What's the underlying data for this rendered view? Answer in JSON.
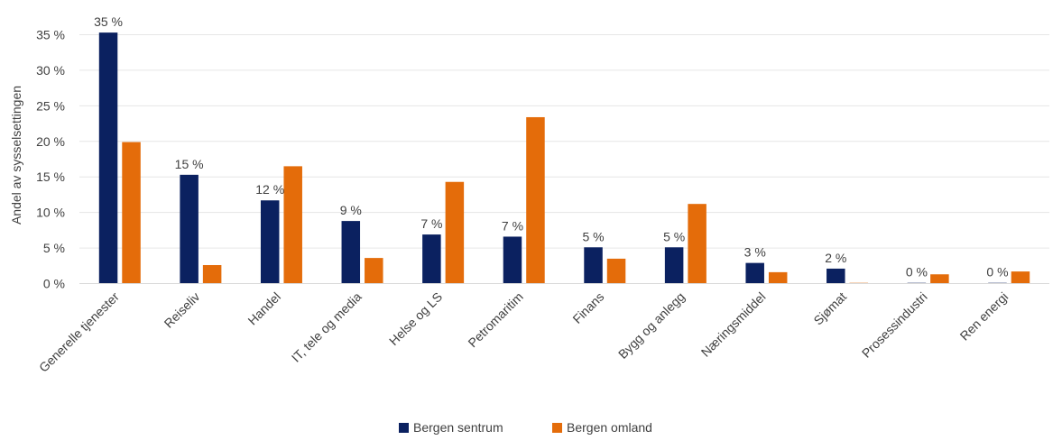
{
  "chart_data": {
    "type": "bar",
    "ylabel": "Andel av sysselsettingen",
    "xlabel": "",
    "ylim": [
      0,
      35
    ],
    "y_ticks": [
      "0 %",
      "5 %",
      "10 %",
      "15 %",
      "20 %",
      "25 %",
      "30 %",
      "35 %"
    ],
    "grid": true,
    "legend_position": "bottom",
    "categories": [
      "Generelle tjenester",
      "Reiseliv",
      "Handel",
      "IT, tele og media",
      "Helse og LS",
      "Petromaritim",
      "Finans",
      "Bygg og anlegg",
      "Næringsmiddel",
      "Sjømat",
      "Prosessindustri",
      "Ren energi"
    ],
    "series": [
      {
        "name": "Bergen sentrum",
        "color": "#0b2160",
        "values": [
          35.3,
          15.3,
          11.7,
          8.8,
          6.9,
          6.6,
          5.1,
          5.1,
          2.9,
          2.1,
          0.1,
          0.1
        ],
        "data_labels": [
          "35 %",
          "15 %",
          "12 %",
          "9 %",
          "7 %",
          "7 %",
          "5 %",
          "5 %",
          "3 %",
          "2 %",
          "0 %",
          "0 %"
        ]
      },
      {
        "name": "Bergen omland",
        "color": "#e46c0a",
        "values": [
          19.9,
          2.6,
          16.5,
          3.6,
          14.3,
          23.4,
          3.5,
          11.2,
          1.6,
          0.1,
          1.3,
          1.7
        ]
      }
    ]
  }
}
